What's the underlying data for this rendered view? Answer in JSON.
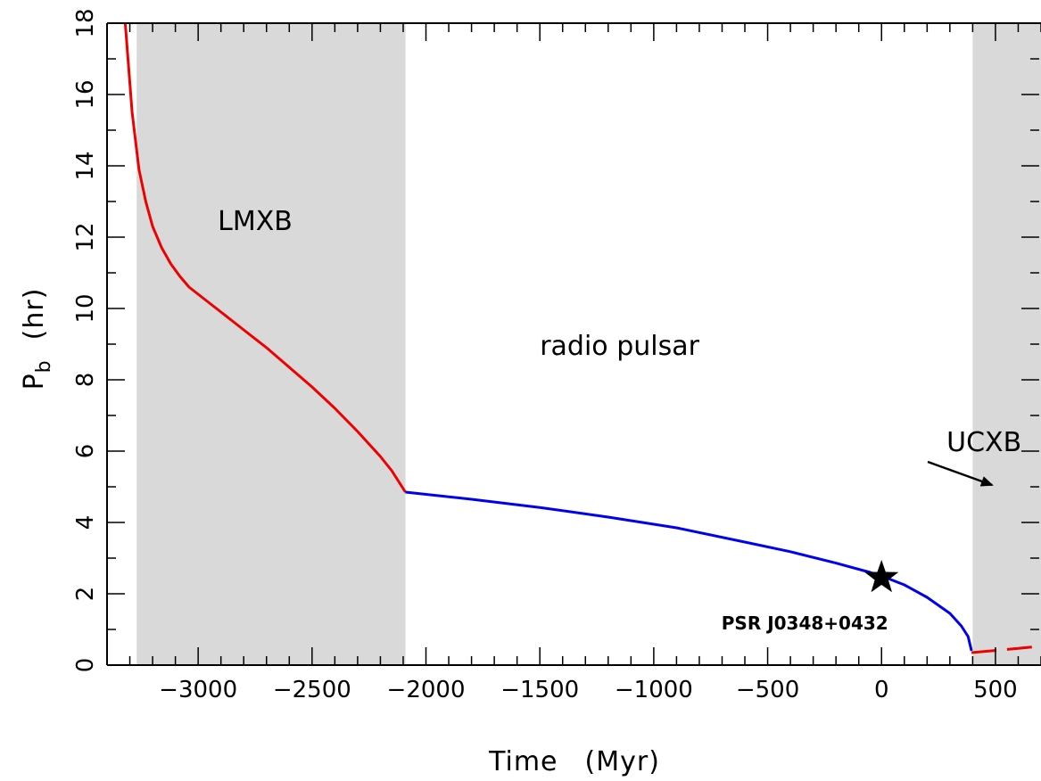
{
  "chart_data": {
    "type": "line",
    "title": "",
    "xlabel": "Time",
    "xlabel_unit": "(Myr)",
    "ylabel": "P",
    "ylabel_sub": "b",
    "ylabel_unit": "(hr)",
    "xlim": [
      -3400,
      700
    ],
    "ylim": [
      0,
      18
    ],
    "x_ticks": [
      -3000,
      -2500,
      -2000,
      -1500,
      -1000,
      -500,
      0,
      500
    ],
    "x_tick_labels": [
      "−3000",
      "−2500",
      "−2000",
      "−1500",
      "−1000",
      "−500",
      "0",
      "500"
    ],
    "y_ticks": [
      0,
      2,
      4,
      6,
      8,
      10,
      12,
      14,
      16,
      18
    ],
    "y_tick_labels": [
      "0",
      "2",
      "4",
      "6",
      "8",
      "10",
      "12",
      "14",
      "16",
      "18"
    ],
    "grid": false,
    "shaded_regions": [
      {
        "x": [
          -3270,
          -2090
        ],
        "label": "LMXB",
        "label_pos": [
          -2750,
          12.2
        ]
      },
      {
        "x": [
          400,
          700
        ],
        "label": "",
        "label_pos": null
      }
    ],
    "annotations": [
      {
        "text": "radio pulsar",
        "x": -1150,
        "y": 8.7
      },
      {
        "text": "UCXB",
        "x": 450,
        "y": 6.0,
        "arrow_from": [
          600,
          5.6
        ],
        "arrow_to": [
          990,
          4.95
        ]
      },
      {
        "text": "PSR J0348+0432",
        "x": 0,
        "y": 1.5
      }
    ],
    "series": [
      {
        "segment": "lmxb",
        "color": "#ee0000",
        "dashed": false,
        "x": [
          -3320,
          -3290,
          -3260,
          -3230,
          -3200,
          -3160,
          -3120,
          -3080,
          -3040,
          -3000,
          -2950,
          -2900,
          -2850,
          -2800,
          -2700,
          -2600,
          -2500,
          -2400,
          -2300,
          -2200,
          -2150,
          -2090
        ],
        "y": [
          18.0,
          15.5,
          13.9,
          13.0,
          12.3,
          11.7,
          11.25,
          10.9,
          10.6,
          10.4,
          10.15,
          9.9,
          9.65,
          9.4,
          8.9,
          8.35,
          7.8,
          7.2,
          6.55,
          5.85,
          5.45,
          4.85
        ]
      },
      {
        "segment": "radio-pulsar",
        "color": "#0000ee",
        "dashed": false,
        "x": [
          -2090,
          -1800,
          -1500,
          -1200,
          -900,
          -600,
          -400,
          -200,
          -50,
          0,
          100,
          200,
          300,
          350,
          380,
          395
        ],
        "y": [
          4.85,
          4.65,
          4.42,
          4.15,
          3.85,
          3.45,
          3.18,
          2.86,
          2.6,
          2.5,
          2.25,
          1.9,
          1.45,
          1.1,
          0.8,
          0.4
        ]
      },
      {
        "segment": "ucxb",
        "color": "#ee0000",
        "dashed": true,
        "x": [
          395,
          450,
          500,
          550,
          600,
          650,
          700
        ],
        "y": [
          0.35,
          0.38,
          0.41,
          0.44,
          0.47,
          0.5,
          0.53
        ]
      }
    ],
    "markers": [
      {
        "name": "star",
        "x": 0,
        "y": 2.45,
        "label": "PSR J0348+0432"
      }
    ]
  }
}
